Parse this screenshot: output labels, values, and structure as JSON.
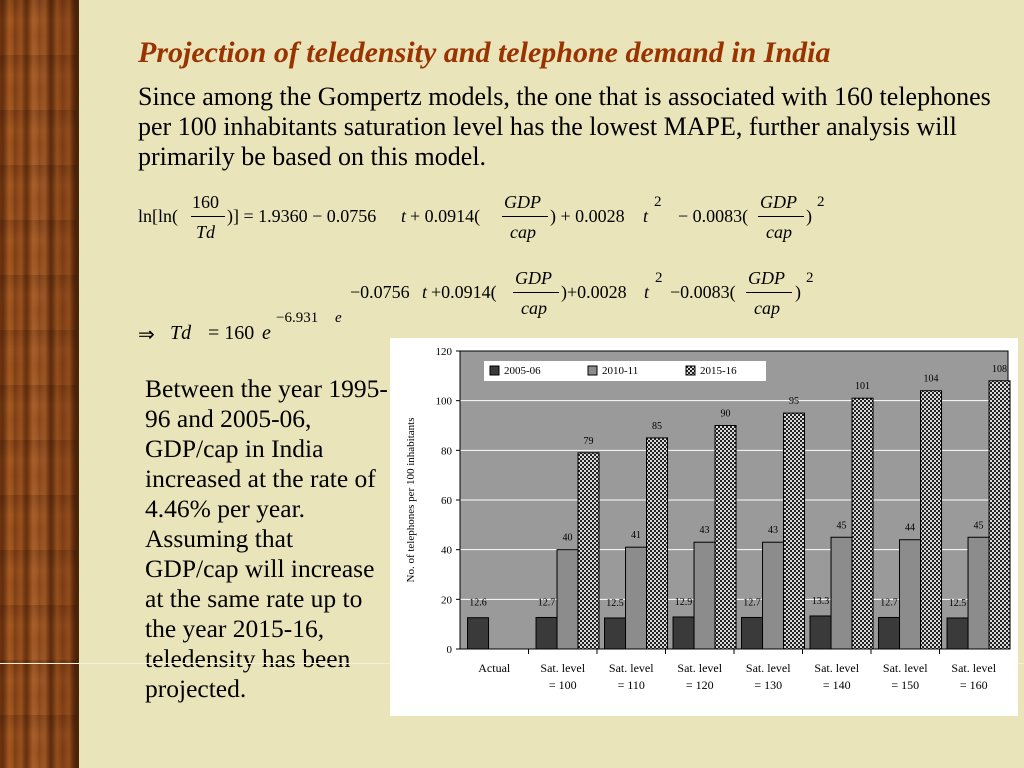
{
  "slide": {
    "title": "Projection of teledensity and telephone demand in India",
    "intro": "Since among the Gompertz models, the one that is associated with 160 telephones per 100 inhabitants saturation level has the lowest MAPE, further analysis will primarily be based on this model.",
    "side_text": "Between the year 1995-96 and 2005-06, GDP/cap in India increased at the rate of 4.46% per year. Assuming that GDP/cap will increase at the same rate up to the year 2015-16, teledensity has been projected.",
    "colors": {
      "title": "#993300",
      "background": "#e9e4b9"
    }
  },
  "equations": {
    "eq1": {
      "lhs_prefix": "ln[ln(",
      "lhs_num": "160",
      "lhs_den": "Td",
      "lhs_suffix": ")] = 1.9360 − 0.0756",
      "t1": "t",
      "plus1": "+ 0.0914(",
      "gdp": "GDP",
      "cap": "cap",
      "mid": ") + 0.0028",
      "t2": "t",
      "exp2": "2",
      "minus": "− 0.0083(",
      "close": ")",
      "exp_end": "2"
    },
    "eq2": {
      "prefix": "−0.0756",
      "t1": "t",
      "plus1": "+0.0914(",
      "gdp": "GDP",
      "cap": "cap",
      "mid": ")+0.0028",
      "t2": "t",
      "exp2": "2",
      "minus": "−0.0083(",
      "close": ")",
      "exp_end": "2"
    },
    "eq3": {
      "arrow": "⇒",
      "td": "Td",
      "eq": "= 160",
      "e": "e",
      "exponent": "−6.931",
      "exp_e": "e"
    }
  },
  "chart_data": {
    "type": "bar",
    "ylabel": "No. of telephones per 100 inhabitants",
    "ylim": [
      0,
      120
    ],
    "yticks": [
      0,
      20,
      40,
      60,
      80,
      100,
      120
    ],
    "grid": true,
    "legend_position": "top-left",
    "categories": [
      [
        "Actual"
      ],
      [
        "Sat. level",
        "= 100"
      ],
      [
        "Sat. level",
        "= 110"
      ],
      [
        "Sat. level",
        "= 120"
      ],
      [
        "Sat. level",
        "= 130"
      ],
      [
        "Sat. level",
        "= 140"
      ],
      [
        "Sat. level",
        "= 150"
      ],
      [
        "Sat. level",
        "= 160"
      ]
    ],
    "series": [
      {
        "name": "2005-06",
        "pattern": "dark",
        "values": [
          12.6,
          12.7,
          12.5,
          12.9,
          12.7,
          13.3,
          12.7,
          12.5
        ],
        "labels": [
          "12.6",
          "12.7",
          "12.5",
          "12.9",
          "12.7",
          "13.3",
          "12.7",
          "12.5"
        ]
      },
      {
        "name": "2010-11",
        "pattern": "grey",
        "values": [
          null,
          40,
          41,
          43,
          43,
          45,
          44,
          45
        ],
        "labels": [
          "",
          "40",
          "41",
          "43",
          "43",
          "45",
          "44",
          "45"
        ]
      },
      {
        "name": "2015-16",
        "pattern": "checker",
        "values": [
          null,
          79,
          85,
          90,
          95,
          101,
          104,
          108
        ],
        "labels": [
          "",
          "79",
          "85",
          "90",
          "95",
          "101",
          "104",
          "108"
        ]
      }
    ]
  }
}
